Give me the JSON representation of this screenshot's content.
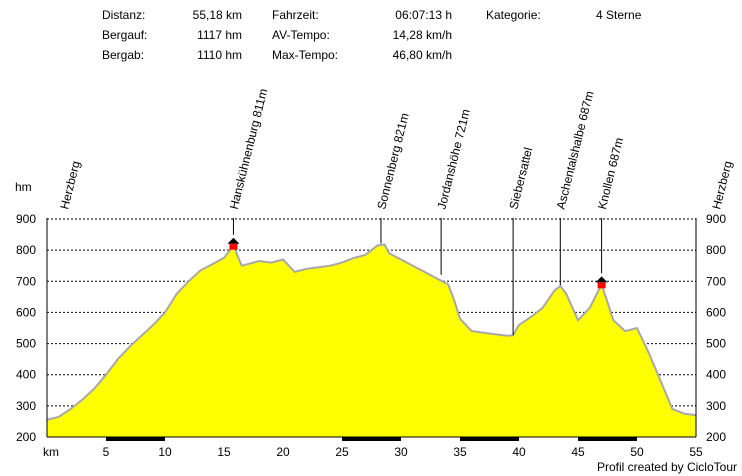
{
  "stats": {
    "distance_label": "Distanz:",
    "distance_value": "55,18 km",
    "up_label": "Bergauf:",
    "up_value": "1117 hm",
    "down_label": "Bergab:",
    "down_value": "1110 hm",
    "time_label": "Fahrzeit:",
    "time_value": "06:07:13 h",
    "avg_label": "AV-Tempo:",
    "avg_value": "14,28 km/h",
    "max_label": "Max-Tempo:",
    "max_value": "46,80 km/h",
    "cat_label": "Kategorie:",
    "cat_value": "4 Sterne"
  },
  "credit": "Profil created by CicloTour",
  "colors": {
    "fill": "#ffff00",
    "outline": "#a8a8a8",
    "marker_red": "#ff0000",
    "bar": "#000000"
  },
  "chart_data": {
    "type": "area",
    "title": "",
    "xlabel": "km",
    "ylabel": "hm",
    "xlim": [
      0,
      55
    ],
    "ylim": [
      200,
      900
    ],
    "xticks": [
      5,
      10,
      15,
      20,
      25,
      30,
      35,
      40,
      45,
      50,
      55
    ],
    "yticks": [
      200,
      300,
      400,
      500,
      600,
      700,
      800,
      900
    ],
    "grid": true,
    "x": [
      0,
      1,
      2,
      3,
      4,
      5,
      6,
      7,
      8,
      9,
      10,
      11,
      12,
      13,
      14,
      15,
      15.8,
      16.5,
      17,
      18,
      19,
      20,
      21,
      22,
      23,
      24,
      25,
      26,
      27,
      28,
      28.6,
      29,
      30,
      31,
      32,
      33,
      34,
      34.5,
      35,
      36,
      37,
      38,
      39,
      39.5,
      40,
      41,
      42,
      43,
      43.5,
      44,
      45,
      46,
      47,
      48,
      49,
      50,
      51,
      52,
      53,
      54,
      55
    ],
    "y": [
      255,
      265,
      290,
      320,
      355,
      400,
      450,
      490,
      525,
      560,
      600,
      660,
      700,
      735,
      755,
      775,
      815,
      750,
      755,
      765,
      760,
      770,
      730,
      740,
      745,
      750,
      760,
      775,
      785,
      815,
      818,
      790,
      770,
      750,
      730,
      710,
      690,
      640,
      580,
      540,
      535,
      530,
      525,
      527,
      560,
      585,
      615,
      670,
      685,
      660,
      575,
      615,
      690,
      575,
      540,
      550,
      470,
      380,
      290,
      275,
      270
    ],
    "peaks": [
      {
        "name": "Herzberg",
        "km": 0,
        "alt": 255
      },
      {
        "name": "Hanskühnenburg 811m",
        "km": 15.8,
        "alt": 811,
        "marker": "hut"
      },
      {
        "name": "Sonnenberg 821m",
        "km": 28.3,
        "alt": 821
      },
      {
        "name": "Jordanshöhe 721m",
        "km": 33.4,
        "alt": 721
      },
      {
        "name": "Siebersattel",
        "km": 39.5,
        "alt": 527
      },
      {
        "name": "Aschentalshalbe 687m",
        "km": 43.5,
        "alt": 687
      },
      {
        "name": "Knollen 687m",
        "km": 47.0,
        "alt": 687,
        "marker": "hut"
      },
      {
        "name": "Herzberg",
        "km": 55,
        "alt": 270
      }
    ],
    "distance_bars": [
      [
        5,
        10
      ],
      [
        25,
        30
      ],
      [
        35,
        40
      ],
      [
        45,
        50
      ]
    ]
  }
}
